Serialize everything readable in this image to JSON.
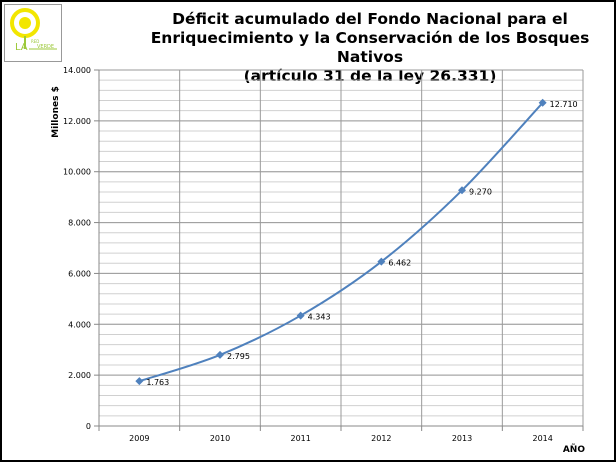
{
  "logo": {
    "text": "LA RED VERDE",
    "colors": {
      "sun": "#f2e600",
      "text": "#9cc93a"
    }
  },
  "chart_data": {
    "type": "line",
    "title_lines": [
      "Déficit acumulado del Fondo Nacional para el",
      "Enriquecimiento y la Conservación de los Bosques Nativos",
      "(artículo 31 de la ley 26.331)"
    ],
    "xlabel": "AÑO",
    "ylabel": "Millones $",
    "categories": [
      "2009",
      "2010",
      "2011",
      "2012",
      "2013",
      "2014"
    ],
    "values": [
      1763,
      2795,
      4343,
      6462,
      9270,
      12710
    ],
    "data_labels": [
      "1.763",
      "2.795",
      "4.343",
      "6.462",
      "9.270",
      "12.710"
    ],
    "ylim": [
      0,
      14000
    ],
    "yticks": [
      0,
      2000,
      4000,
      6000,
      8000,
      10000,
      12000,
      14000
    ],
    "ytick_labels": [
      "0",
      "2.000",
      "4.000",
      "6.000",
      "8.000",
      "10.000",
      "12.000",
      "14.000"
    ],
    "minor_grid_step": 400,
    "grid": true,
    "smooth": true,
    "marker": "diamond",
    "series_color": "#4f81bd"
  }
}
